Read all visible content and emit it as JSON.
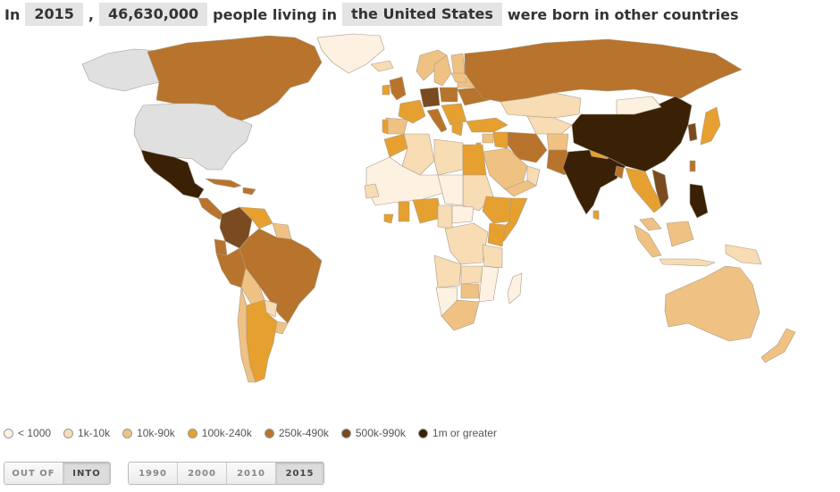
{
  "headline": {
    "prefix": "In",
    "year": "2015",
    "comma": ",",
    "count": "46,630,000",
    "middle": "people living in",
    "country": "the United States",
    "suffix": "were born in other countries"
  },
  "legend": [
    {
      "label": "< 1000",
      "color": "#fdf1e1"
    },
    {
      "label": "1k-10k",
      "color": "#f7dcb4"
    },
    {
      "label": "10k-90k",
      "color": "#efc283"
    },
    {
      "label": "100k-240k",
      "color": "#e6a030"
    },
    {
      "label": "250k-490k",
      "color": "#b8742c"
    },
    {
      "label": "500k-990k",
      "color": "#7a4a20"
    },
    {
      "label": "1m or greater",
      "color": "#3a2105"
    }
  ],
  "direction": {
    "options": [
      "OUT OF",
      "INTO"
    ],
    "selected": "INTO"
  },
  "years": {
    "options": [
      "1990",
      "2000",
      "2010",
      "2015"
    ],
    "selected": "2015"
  },
  "map": {
    "selected_country": "United States",
    "selected_color": "#e0e0e0",
    "border_color": "#a89a88",
    "water_color": "#ffffff"
  }
}
